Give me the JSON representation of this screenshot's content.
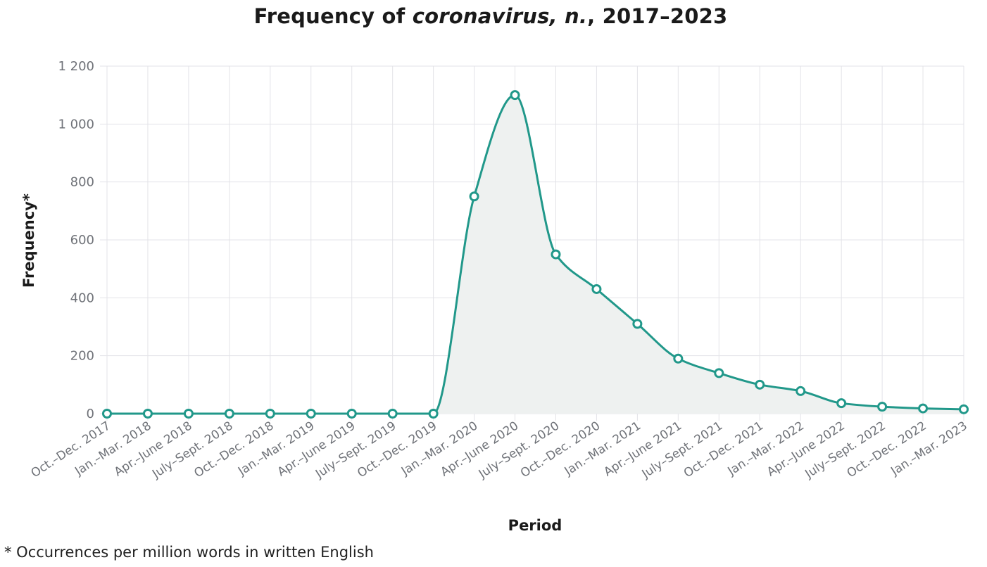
{
  "title": {
    "prefix": "Frequency of ",
    "term": "coronavirus, n.",
    "suffix": ", 2017–2023"
  },
  "footnote": "* Occurrences per million words in written English",
  "chart_data": {
    "type": "area",
    "xlabel": "Period",
    "ylabel": "Frequency*",
    "ylim": [
      0,
      1200
    ],
    "yticks": [
      0,
      200,
      400,
      600,
      800,
      1000,
      1200
    ],
    "ytick_labels": [
      "0",
      "200",
      "400",
      "600",
      "800",
      "1 000",
      "1 200"
    ],
    "grid": true,
    "legend": "none",
    "categories": [
      "Oct.–Dec. 2017",
      "Jan.–Mar. 2018",
      "Apr.–June 2018",
      "July–Sept. 2018",
      "Oct.–Dec. 2018",
      "Jan.–Mar. 2019",
      "Apr.–June 2019",
      "July–Sept. 2019",
      "Oct.–Dec. 2019",
      "Jan.–Mar. 2020",
      "Apr.–June 2020",
      "July–Sept. 2020",
      "Oct.–Dec. 2020",
      "Jan.–Mar. 2021",
      "Apr.–June 2021",
      "July–Sept. 2021",
      "Oct.–Dec. 2021",
      "Jan.–Mar. 2022",
      "Apr.–June 2022",
      "July–Sept. 2022",
      "Oct.–Dec. 2022",
      "Jan.–Mar. 2023"
    ],
    "values": [
      0,
      0,
      0,
      0,
      0,
      0,
      0,
      0,
      0,
      750,
      1100,
      550,
      430,
      310,
      190,
      140,
      100,
      78,
      36,
      24,
      18,
      15
    ],
    "colors": {
      "line": "#21988a",
      "fill": "#eef1f0",
      "grid": "#e3e3e8",
      "tick_text": "#6f7278",
      "marker_fill": "#ffffff"
    }
  }
}
